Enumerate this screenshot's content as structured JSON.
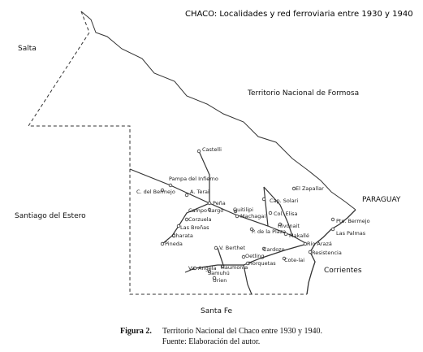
{
  "title": "CHACO: Localidades y red ferroviaria entre 1930 y 1940",
  "regions": [
    "Salta",
    "Territorio Nacional de Formosa",
    "Santiago del Estero",
    "PARAGUAY",
    "Corrientes",
    "Santa Fe"
  ],
  "localities": [
    "Castelli",
    "Pampa del Infierno",
    "C. del Bermejo",
    "A. Terai",
    "Peña",
    "Campo Largo",
    "Quitilipi",
    "Machagai",
    "Corzuela",
    "Las Breñas",
    "Charata",
    "Pineda",
    "El Zapallar",
    "Cap. Solari",
    "Col. Elisa",
    "Hivonait",
    "P. de la Plaza",
    "Makallé",
    "V. Berthet",
    "Oetling",
    "Cardozo",
    "Horquetas",
    "Cote-lai",
    "Haumonia",
    "Va. Angela",
    "Samuhú",
    "Urien",
    "Río Arazá",
    "Resistencia",
    "Pto. Bermejo",
    "Las Palmas"
  ],
  "caption": {
    "label": "Figura 2.",
    "text": "Territorio Nacional del Chaco entre 1930 y 1940.",
    "source": "Fuente: Elaboración del autor."
  }
}
